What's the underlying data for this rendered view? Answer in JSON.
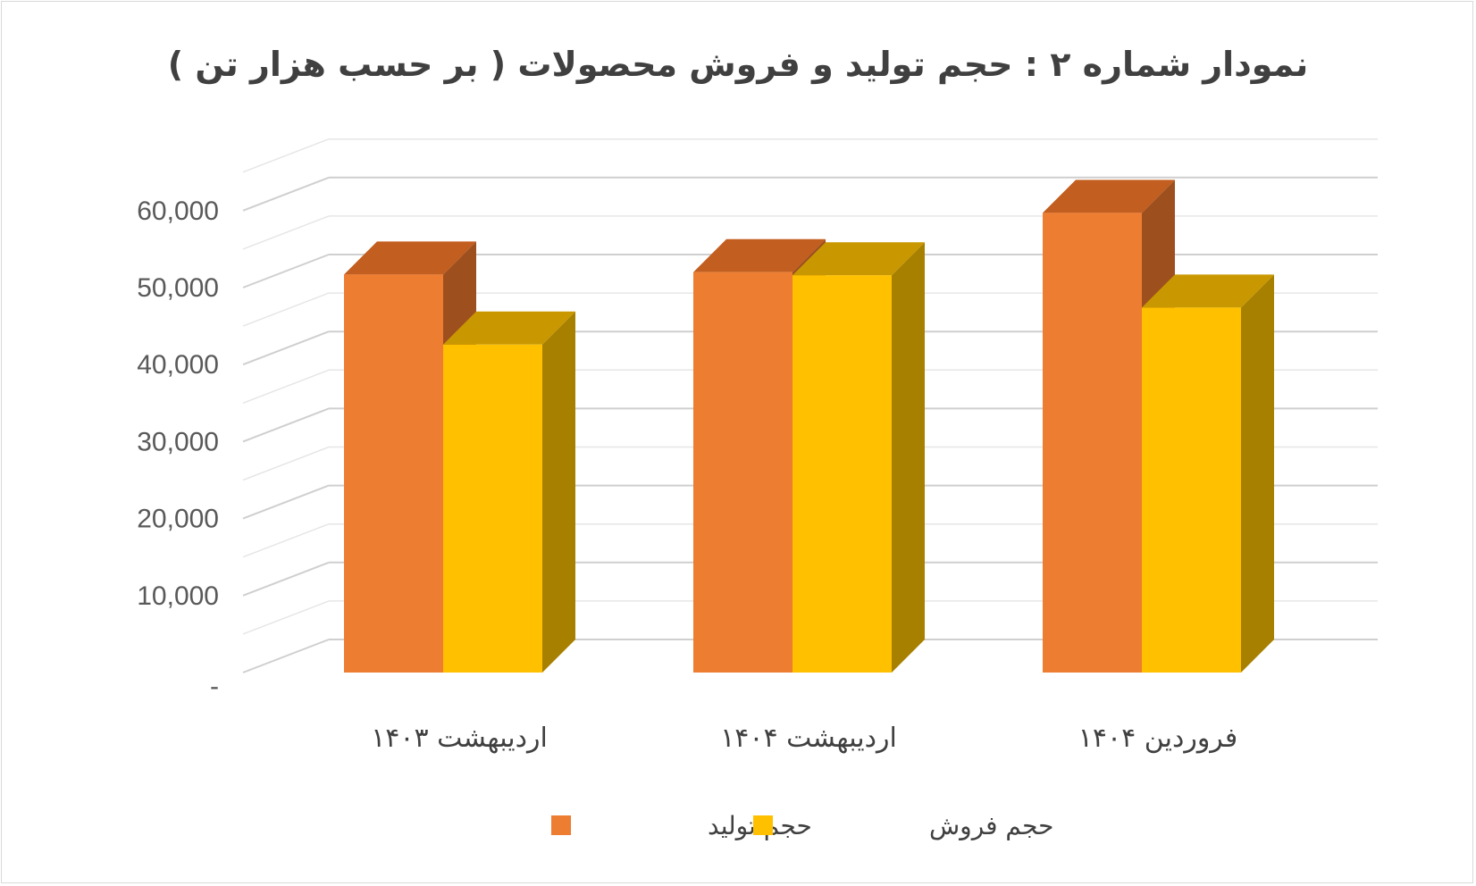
{
  "chart_data": {
    "type": "bar",
    "title": "نمودار شماره ۲ : حجم  تولید و فروش محصولات ( بر حسب هزار تن )",
    "categories": [
      "اردیبهشت ۱۴۰۳",
      "اردیبهشت ۱۴۰۴",
      "فروردین ۱۴۰۴"
    ],
    "series": [
      {
        "name": "حجم تولید",
        "values": [
          51700,
          52000,
          59700
        ],
        "color": "#ED7D31",
        "top_color": "#C25E1F",
        "side_color": "#9E4F1E"
      },
      {
        "name": "حجم فروش",
        "values": [
          42600,
          51600,
          47400
        ],
        "color": "#FFC000",
        "top_color": "#C99800",
        "side_color": "#A88000"
      }
    ],
    "ylim": [
      0,
      60000
    ],
    "y_ticks": [
      "-",
      "10,000",
      "20,000",
      "30,000",
      "40,000",
      "50,000",
      "60,000"
    ],
    "grid": true,
    "legend_position": "bottom"
  }
}
